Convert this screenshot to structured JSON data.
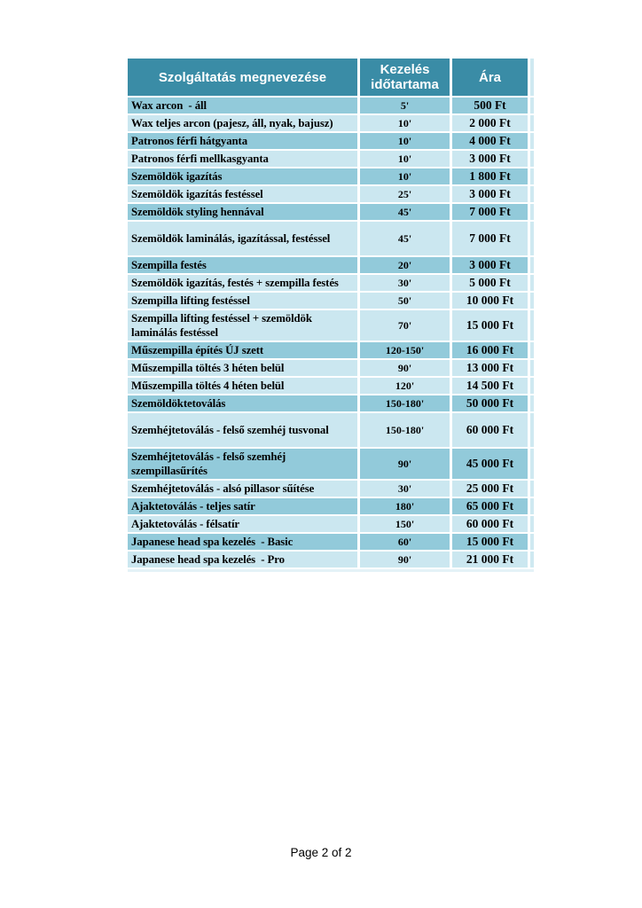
{
  "page": {
    "footer": "Page 2 of 2"
  },
  "table": {
    "colors": {
      "header_bg": "#3a8ca6",
      "header_text": "#ffffff",
      "row_dark": "#92cada",
      "row_light": "#cbe7f0",
      "sliver": "#cfe9f1",
      "bottom_strip": "#e4f2f7",
      "body_text": "#000000"
    },
    "headers": [
      {
        "label": "Szolgáltatás megnevezése"
      },
      {
        "label": "Kezelés időtartama"
      },
      {
        "label": "Ára"
      }
    ],
    "rows": [
      {
        "service": "Wax arcon  - áll",
        "duration": "5'",
        "price": "500 Ft",
        "shade": "dark"
      },
      {
        "service": "Wax teljes arcon (pajesz, áll, nyak, bajusz)",
        "duration": "10'",
        "price": "2 000 Ft",
        "shade": "light"
      },
      {
        "service": "Patronos férfi hátgyanta",
        "duration": "10'",
        "price": "4 000 Ft",
        "shade": "dark"
      },
      {
        "service": "Patronos férfi mellkasgyanta",
        "duration": "10'",
        "price": "3 000 Ft",
        "shade": "light"
      },
      {
        "service": "Szemöldök igazítás",
        "duration": "10'",
        "price": "1 800 Ft",
        "shade": "dark"
      },
      {
        "service": "Szemöldök igazítás festéssel",
        "duration": "25'",
        "price": "3 000 Ft",
        "shade": "light"
      },
      {
        "service": "Szemöldök styling hennával",
        "duration": "45'",
        "price": "7 000 Ft",
        "shade": "dark"
      },
      {
        "service": "Szemöldök laminálás, igazítással, festéssel",
        "duration": "45'",
        "price": "7 000 Ft",
        "shade": "light"
      },
      {
        "service": "Szempilla festés",
        "duration": "20'",
        "price": "3 000 Ft",
        "shade": "dark"
      },
      {
        "service": "Szemöldök igazítás, festés + szempilla festés",
        "duration": "30'",
        "price": "5 000 Ft",
        "shade": "light"
      },
      {
        "service": "Szempilla lifting festéssel",
        "duration": "50'",
        "price": "10 000 Ft",
        "shade": "light"
      },
      {
        "service": "Szempilla lifting festéssel + szemöldök laminálás festéssel",
        "duration": "70'",
        "price": "15 000 Ft",
        "shade": "light"
      },
      {
        "service": "Műszempilla építés ÚJ szett",
        "duration": "120-150'",
        "price": "16 000 Ft",
        "shade": "dark"
      },
      {
        "service": "Műszempilla töltés 3 héten belül",
        "duration": "90'",
        "price": "13 000 Ft",
        "shade": "light"
      },
      {
        "service": "Műszempilla töltés 4 héten belül",
        "duration": "120'",
        "price": "14 500 Ft",
        "shade": "light"
      },
      {
        "service": "Szemöldöktetoválás",
        "duration": "150-180'",
        "price": "50 000 Ft",
        "shade": "dark"
      },
      {
        "service": "Szemhéjtetoválás - felső szemhéj tusvonal",
        "duration": "150-180'",
        "price": "60 000 Ft",
        "shade": "light"
      },
      {
        "service": "Szemhéjtetoválás - felső szemhéj szempillasűrítés",
        "duration": "90'",
        "price": "45 000 Ft",
        "shade": "dark"
      },
      {
        "service": "Szemhéjtetoválás - alsó pillasor sűítése",
        "duration": "30'",
        "price": "25 000 Ft",
        "shade": "light"
      },
      {
        "service": "Ajaktetoválás - teljes satír",
        "duration": "180'",
        "price": "65 000 Ft",
        "shade": "dark"
      },
      {
        "service": "Ajaktetoválás - félsatír",
        "duration": "150'",
        "price": "60 000 Ft",
        "shade": "light"
      },
      {
        "service": "Japanese head spa kezelés  - Basic",
        "duration": "60'",
        "price": "15 000 Ft",
        "shade": "dark"
      },
      {
        "service": "Japanese head spa kezelés  - Pro",
        "duration": "90'",
        "price": "21 000 Ft",
        "shade": "light"
      }
    ]
  }
}
